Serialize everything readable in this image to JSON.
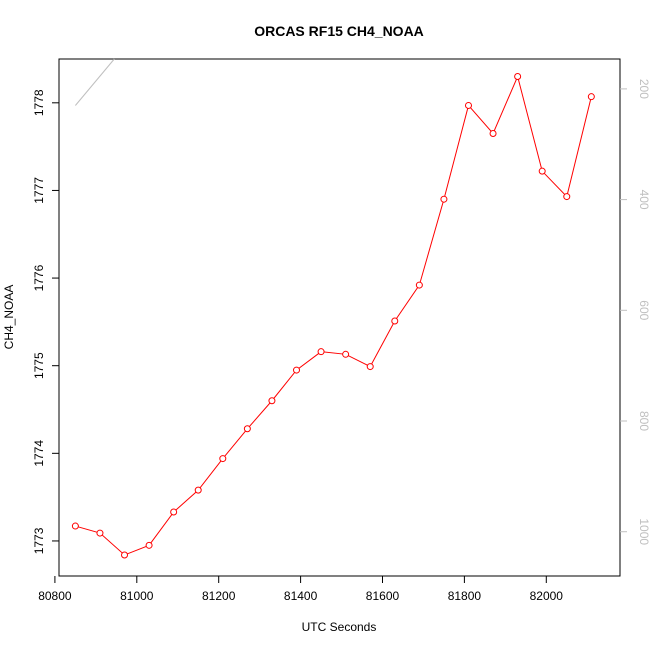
{
  "chart_data": {
    "type": "line",
    "title": "ORCAS RF15 CH4_NOAA",
    "xlabel": "UTC Seconds",
    "ylabel": "CH4_NOAA",
    "xlim": [
      80810,
      82180
    ],
    "ylim": [
      1772.6,
      1778.5
    ],
    "x_ticks": [
      80800,
      81000,
      81200,
      81400,
      81600,
      81800,
      82000
    ],
    "y_ticks": [
      1773,
      1774,
      1775,
      1776,
      1777,
      1778
    ],
    "series": [
      {
        "color": "#ff0000",
        "marker": "open-circle",
        "points": [
          [
            80850,
            1773.17
          ],
          [
            80910,
            1773.09
          ],
          [
            80970,
            1772.84
          ],
          [
            81030,
            1772.95
          ],
          [
            81090,
            1773.33
          ],
          [
            81150,
            1773.58
          ],
          [
            81210,
            1773.94
          ],
          [
            81270,
            1774.28
          ],
          [
            81330,
            1774.6
          ],
          [
            81390,
            1774.95
          ],
          [
            81450,
            1775.16
          ],
          [
            81510,
            1775.13
          ],
          [
            81570,
            1774.99
          ],
          [
            81630,
            1775.51
          ],
          [
            81690,
            1775.92
          ],
          [
            81750,
            1776.9
          ],
          [
            81810,
            1777.97
          ],
          [
            81870,
            1777.65
          ],
          [
            81930,
            1778.3
          ],
          [
            81990,
            1777.22
          ],
          [
            82050,
            1776.93
          ],
          [
            82110,
            1778.07
          ]
        ]
      }
    ],
    "secondary_axis": {
      "side": "right",
      "color": "#bfbfbf",
      "ticks": [
        200,
        400,
        600,
        800,
        1000
      ],
      "ylim": [
        1080,
        146
      ],
      "reversed": true,
      "series": {
        "color": "#bfbfbf",
        "points": [
          [
            80850,
            230
          ],
          [
            80945,
            146
          ]
        ]
      }
    }
  }
}
